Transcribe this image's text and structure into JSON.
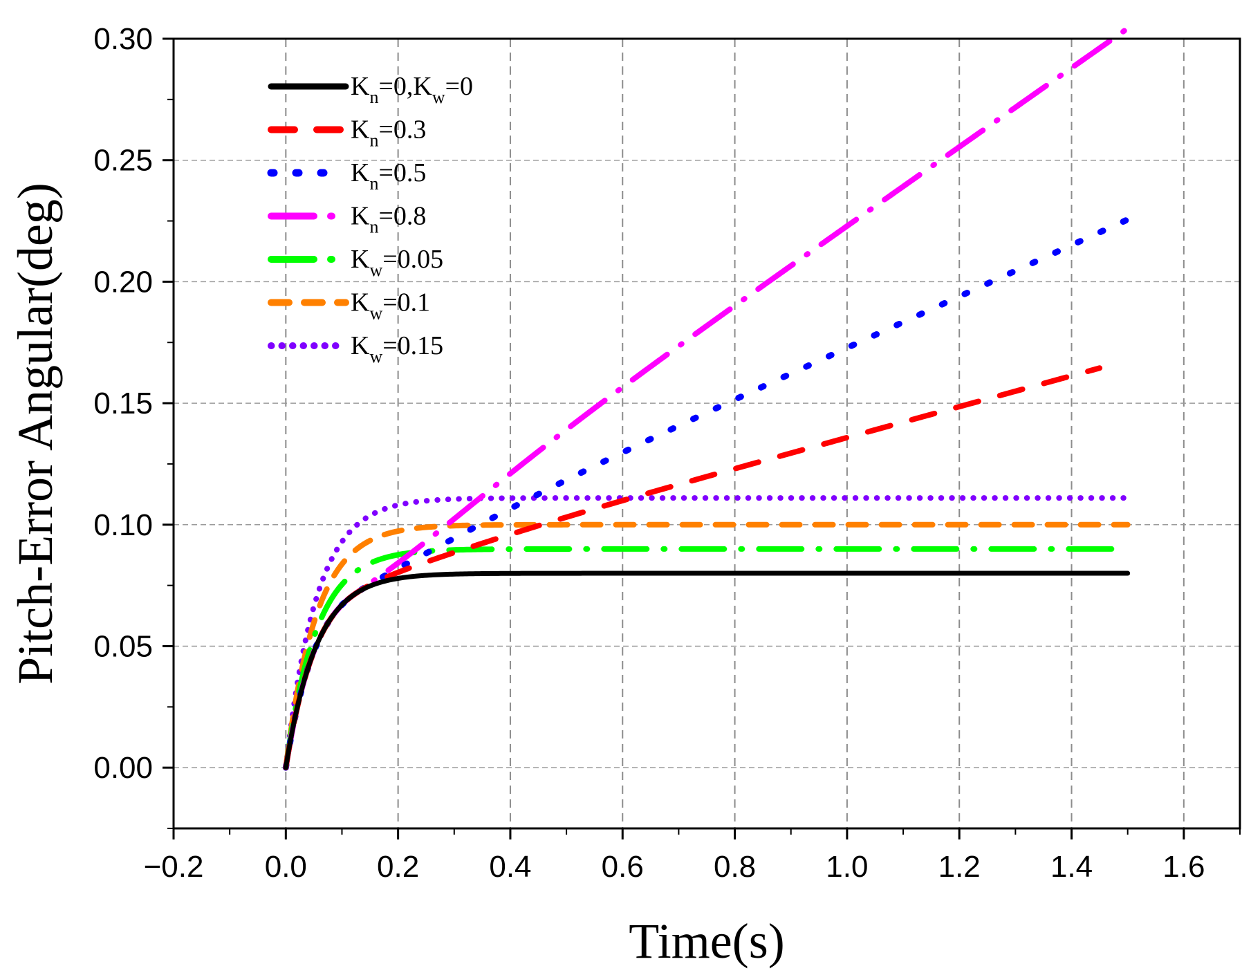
{
  "chart_data": {
    "type": "line",
    "title": "",
    "xlabel": "Time(s)",
    "ylabel": "Pitch-Error Angular(deg)",
    "xlim": [
      -0.2,
      1.7
    ],
    "ylim": [
      -0.025,
      0.3
    ],
    "xticks": [
      -0.2,
      0.0,
      0.2,
      0.4,
      0.6,
      0.8,
      1.0,
      1.2,
      1.4,
      1.6
    ],
    "xtick_labels": [
      "−0.2",
      "0.0",
      "0.2",
      "0.4",
      "0.6",
      "0.8",
      "1.0",
      "1.2",
      "1.4",
      "1.6"
    ],
    "yticks": [
      0.0,
      0.05,
      0.1,
      0.15,
      0.2,
      0.25,
      0.3
    ],
    "ytick_labels": [
      "0.00",
      "0.05",
      "0.10",
      "0.15",
      "0.20",
      "0.25",
      "0.30"
    ],
    "grid": true,
    "legend_position": "top-left",
    "series": [
      {
        "name": "Kn=0,Kw=0",
        "label_parts": [
          [
            "K",
            "n",
            "=0,"
          ],
          [
            "K",
            "w",
            "=0"
          ]
        ],
        "color": "#000000",
        "style": "solid",
        "t_end": 1.5,
        "settle": 0.08,
        "slope": 0
      },
      {
        "name": "Kn=0.3",
        "label_parts": [
          [
            "K",
            "n",
            "=0.3"
          ]
        ],
        "color": "#ff0000",
        "style": "dash",
        "t_end": 1.45,
        "settle": 0.08,
        "slope": 0.0635
      },
      {
        "name": "Kn=0.5",
        "label_parts": [
          [
            "K",
            "n",
            "=0.5"
          ]
        ],
        "color": "#0000ff",
        "style": "dot",
        "t_end": 1.5,
        "settle": 0.08,
        "slope": 0.1055
      },
      {
        "name": "Kn=0.8",
        "label_parts": [
          [
            "K",
            "n",
            "=0.8"
          ]
        ],
        "color": "#ff00ff",
        "style": "dashdot",
        "t_end": 1.5,
        "settle": 0.08,
        "slope": 0.1625
      },
      {
        "name": "Kw=0.05",
        "label_parts": [
          [
            "K",
            "w",
            "=0.05"
          ]
        ],
        "color": "#00ff00",
        "style": "dashdot",
        "t_end": 1.5,
        "settle": 0.09,
        "slope": 0
      },
      {
        "name": "Kw=0.1",
        "label_parts": [
          [
            "K",
            "w",
            "=0.1"
          ]
        ],
        "color": "#ff8000",
        "style": "shortdash",
        "t_end": 1.5,
        "settle": 0.1,
        "slope": 0
      },
      {
        "name": "Kw=0.15",
        "label_parts": [
          [
            "K",
            "w",
            "=0.15"
          ]
        ],
        "color": "#8000ff",
        "style": "dotsmall",
        "t_end": 1.5,
        "settle": 0.111,
        "slope": 0
      }
    ]
  }
}
